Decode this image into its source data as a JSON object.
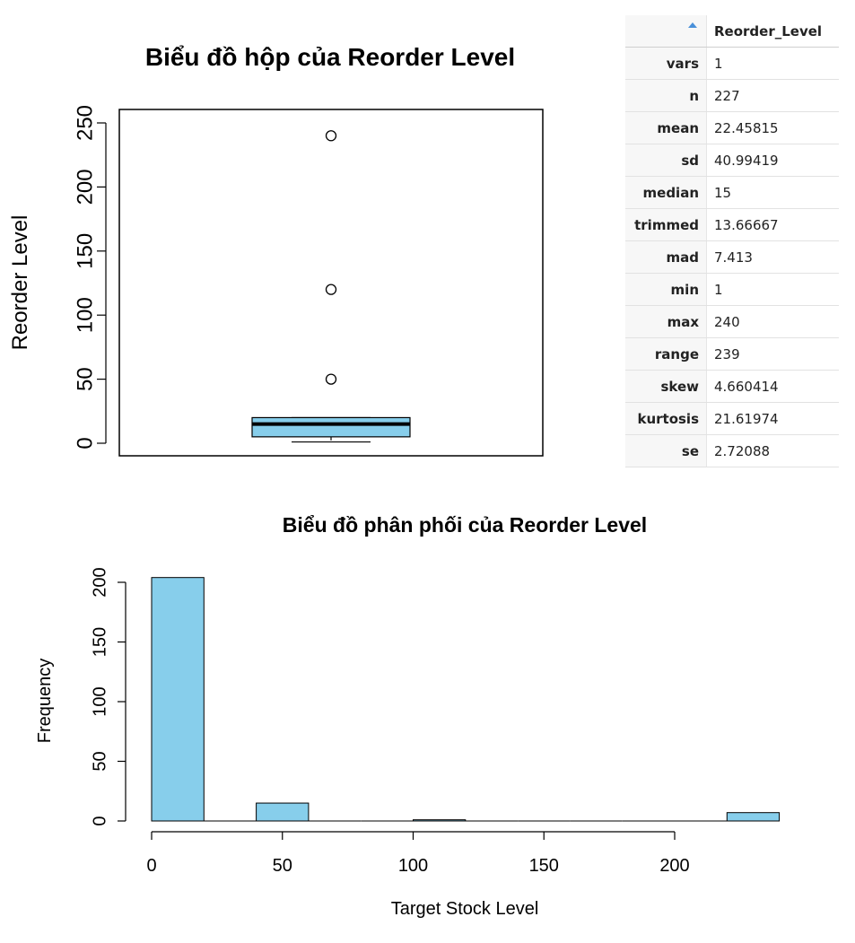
{
  "chart_data": [
    {
      "type": "boxplot",
      "title": "Biểu đồ hộp của Reorder Level",
      "ylabel": "Reorder Level",
      "xlabel": "",
      "ylim": [
        0,
        260
      ],
      "yticks": [
        0,
        50,
        100,
        150,
        200,
        250
      ],
      "box": {
        "whisker_low": 1,
        "q1": 5,
        "median": 15,
        "q3": 20,
        "whisker_high": 20
      },
      "outliers": [
        50,
        120,
        240
      ],
      "fill_color": "#87CEEB"
    },
    {
      "type": "bar",
      "subtype": "histogram",
      "title": "Biểu đồ phân phối của Reorder Level",
      "xlabel": "Target Stock Level",
      "ylabel": "Frequency",
      "xlim": [
        0,
        240
      ],
      "ylim": [
        0,
        205
      ],
      "xticks": [
        0,
        50,
        100,
        150,
        200
      ],
      "yticks": [
        0,
        50,
        100,
        150,
        200
      ],
      "bins": [
        {
          "start": 0,
          "end": 20,
          "count": 204
        },
        {
          "start": 20,
          "end": 40,
          "count": 0
        },
        {
          "start": 40,
          "end": 60,
          "count": 15
        },
        {
          "start": 60,
          "end": 80,
          "count": 0
        },
        {
          "start": 80,
          "end": 100,
          "count": 0
        },
        {
          "start": 100,
          "end": 120,
          "count": 1
        },
        {
          "start": 120,
          "end": 140,
          "count": 0
        },
        {
          "start": 140,
          "end": 160,
          "count": 0
        },
        {
          "start": 160,
          "end": 180,
          "count": 0
        },
        {
          "start": 180,
          "end": 200,
          "count": 0
        },
        {
          "start": 200,
          "end": 220,
          "count": 0
        },
        {
          "start": 220,
          "end": 240,
          "count": 7
        }
      ],
      "fill_color": "#87CEEB"
    },
    {
      "type": "table",
      "column_header": "Reorder_Level",
      "rows": [
        {
          "key": "vars",
          "value": "1"
        },
        {
          "key": "n",
          "value": "227"
        },
        {
          "key": "mean",
          "value": "22.45815"
        },
        {
          "key": "sd",
          "value": "40.99419"
        },
        {
          "key": "median",
          "value": "15"
        },
        {
          "key": "trimmed",
          "value": "13.66667"
        },
        {
          "key": "mad",
          "value": "7.413"
        },
        {
          "key": "min",
          "value": "1"
        },
        {
          "key": "max",
          "value": "240"
        },
        {
          "key": "range",
          "value": "239"
        },
        {
          "key": "skew",
          "value": "4.660414"
        },
        {
          "key": "kurtosis",
          "value": "21.61974"
        },
        {
          "key": "se",
          "value": "2.72088"
        }
      ]
    }
  ]
}
